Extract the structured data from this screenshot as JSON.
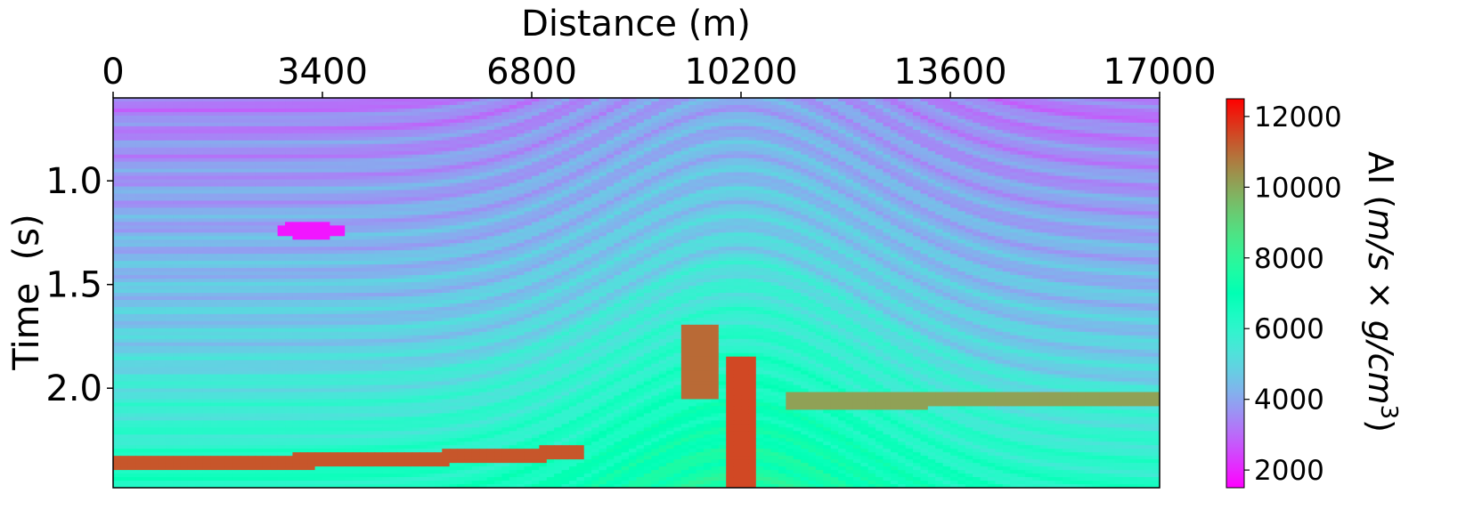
{
  "chart_data": {
    "type": "heatmap",
    "title": "",
    "xlabel": "Distance (m)",
    "ylabel": "Time  (s)",
    "xaxis_position": "top",
    "xlim": [
      0,
      17000
    ],
    "ylim": [
      2.48,
      0.6
    ],
    "xticks": [
      0,
      3400,
      6800,
      10200,
      13600,
      17000
    ],
    "xtick_labels": [
      "0",
      "3400",
      "6800",
      "10200",
      "13600",
      "17000"
    ],
    "yticks": [
      1.0,
      1.5,
      2.0
    ],
    "ytick_labels": [
      "1.0",
      "1.5",
      "2.0"
    ],
    "colorbar": {
      "label": "AI (m/s × g/cm³)",
      "label_main": "AI (",
      "label_math": "m/s × g/cm",
      "label_exp": "3",
      "label_close": ")",
      "vmin": 1500,
      "vmax": 12500,
      "ticks": [
        2000,
        4000,
        6000,
        8000,
        10000,
        12000
      ],
      "tick_labels": [
        "2000",
        "4000",
        "6000",
        "8000",
        "10000",
        "12000"
      ],
      "colormap": "rainbow",
      "position": "right"
    },
    "grid": false,
    "features": [
      {
        "name": "shallow layers",
        "x_range": [
          0,
          8000
        ],
        "t_range": [
          0.6,
          2.0
        ],
        "value_approx": 3500
      },
      {
        "name": "low-impedance lens",
        "x": 3200,
        "t": 1.25,
        "value_approx": 1800
      },
      {
        "name": "deep layers",
        "x_range": [
          0,
          17000
        ],
        "t_range": [
          2.0,
          2.48
        ],
        "value_approx": 6500
      },
      {
        "name": "high-impedance horizon",
        "x_range": [
          0,
          7500
        ],
        "t": 2.36,
        "value_approx": 11500
      },
      {
        "name": "high-impedance band",
        "x_range": [
          10800,
          17000
        ],
        "t": 2.1,
        "value_approx": 10000
      }
    ]
  }
}
